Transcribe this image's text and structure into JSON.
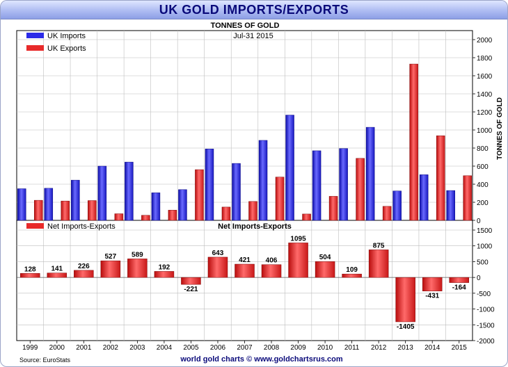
{
  "title": "UK GOLD IMPORTS/EXPORTS",
  "subtitle": "TONNES OF GOLD",
  "date": "Jul-31  2015",
  "source": "Source: EuroStats",
  "footer": "world gold charts © www.goldchartsrus.com",
  "colors": {
    "imports": "#2a2ae8",
    "exports": "#e82a2a",
    "net": "#e82a2a",
    "title": "#0a0a7a"
  },
  "chart_data": [
    {
      "type": "bar",
      "categories": [
        "1999",
        "2000",
        "2001",
        "2002",
        "2003",
        "2004",
        "2005",
        "2006",
        "2007",
        "2008",
        "2009",
        "2010",
        "2011",
        "2012",
        "2013",
        "2014",
        "2015"
      ],
      "series": [
        {
          "name": "UK Imports",
          "values": [
            350,
            355,
            445,
            600,
            645,
            305,
            340,
            790,
            630,
            885,
            1165,
            770,
            795,
            1030,
            325,
            505,
            330
          ]
        },
        {
          "name": "UK Exports",
          "values": [
            222,
            214,
            219,
            73,
            56,
            113,
            561,
            147,
            209,
            479,
            70,
            266,
            686,
            155,
            1730,
            936,
            494
          ]
        }
      ],
      "ylabel": "TONNES OF GOLD",
      "ylim": [
        0,
        2000
      ],
      "yticks": [
        "0",
        "200",
        "400",
        "600",
        "800",
        "1000",
        "1200",
        "1400",
        "1600",
        "1800",
        "2000"
      ],
      "legend": "top-left",
      "grid": true
    },
    {
      "type": "bar",
      "title": "Net Imports-Exports",
      "categories": [
        "1999",
        "2000",
        "2001",
        "2002",
        "2003",
        "2004",
        "2005",
        "2006",
        "2007",
        "2008",
        "2009",
        "2010",
        "2011",
        "2012",
        "2013",
        "2014",
        "2015"
      ],
      "series": [
        {
          "name": "Net Imports-Exports",
          "values": [
            128,
            141,
            226,
            527,
            589,
            192,
            -221,
            643,
            421,
            406,
            1095,
            504,
            109,
            875,
            -1405,
            -431,
            -164
          ]
        }
      ],
      "data_labels": [
        "128",
        "141",
        "226",
        "527",
        "589",
        "192",
        "-221",
        "643",
        "421",
        "406",
        "1095",
        "504",
        "109",
        "875",
        "-1405",
        "-431",
        "-164"
      ],
      "ylim": [
        -2000,
        1500
      ],
      "yticks": [
        "-2000",
        "-1500",
        "-1000",
        "-500",
        "0",
        "500",
        "1000",
        "1500"
      ],
      "legend": "top-left",
      "grid": true
    }
  ]
}
